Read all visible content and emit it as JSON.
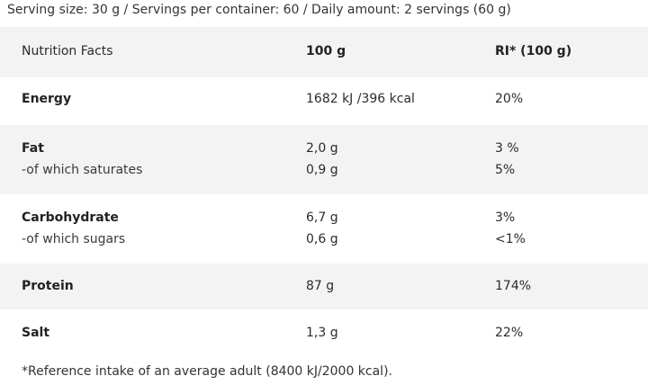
{
  "serving_info": "Serving size: 30 g / Servings per container: 60 / Daily amount: 2 servings (60 g)",
  "table": {
    "header": {
      "label": "Nutrition Facts",
      "per100": "100 g",
      "ri": "RI* (100 g)"
    },
    "energy": {
      "label": "Energy",
      "value": "1682 kJ /396 kcal",
      "ri": "20%"
    },
    "fat": {
      "label": "Fat",
      "value": "2,0 g",
      "ri": "3 %",
      "sub_label": "-of which saturates",
      "sub_value": "0,9 g",
      "sub_ri": "5%"
    },
    "carbohydrate": {
      "label": "Carbohydrate",
      "value": "6,7 g",
      "ri": "3%",
      "sub_label": "-of which sugars",
      "sub_value": "0,6 g",
      "sub_ri": "<1%"
    },
    "protein": {
      "label": "Protein",
      "value": "87 g",
      "ri": "174%"
    },
    "salt": {
      "label": "Salt",
      "value": "1,3 g",
      "ri": "22%"
    }
  },
  "footnote": "*Reference intake of an average adult (8400 kJ/2000 kcal)."
}
